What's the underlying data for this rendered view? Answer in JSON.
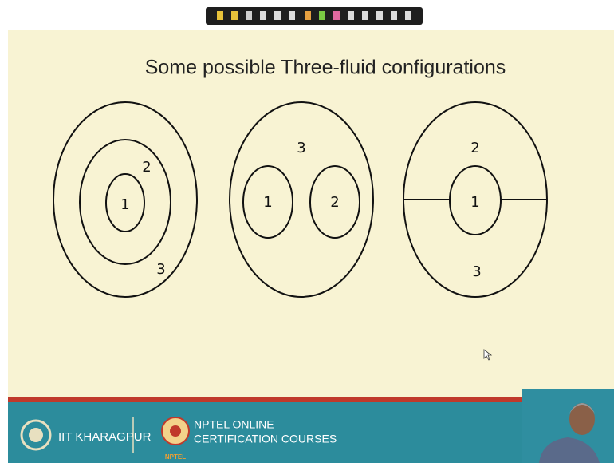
{
  "header": {
    "title": "Some possible Three-fluid configurations"
  },
  "diagrams": [
    {
      "labels": [
        "1",
        "2",
        "3"
      ]
    },
    {
      "labels": [
        "3",
        "1",
        "2"
      ]
    },
    {
      "labels": [
        "2",
        "1",
        "3"
      ]
    }
  ],
  "footer": {
    "institute": "IIT KHARAGPUR",
    "program_lines": [
      "NPTEL ONLINE",
      "CERTIFICATION COURSES"
    ],
    "logo_text": "NPTEL"
  }
}
